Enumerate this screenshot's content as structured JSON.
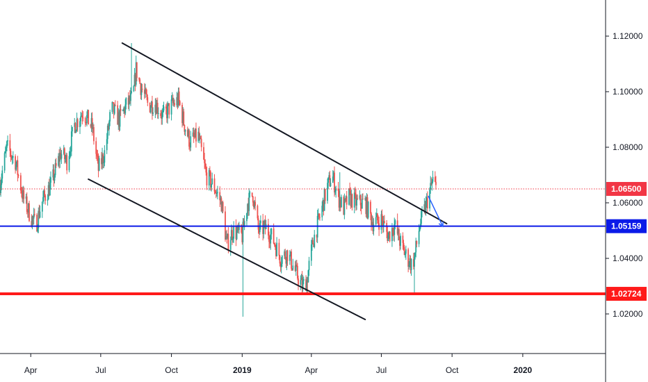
{
  "chart_data": {
    "type": "candlestick",
    "instrument_unit": "price",
    "y_axis": {
      "ticks": [
        "1.12000",
        "1.10000",
        "1.08000",
        "1.06000",
        "1.04000",
        "1.02000"
      ],
      "tick_values": [
        1.12,
        1.1,
        1.08,
        1.06,
        1.04,
        1.02
      ],
      "ylim": [
        1.006,
        1.133
      ]
    },
    "x_axis": {
      "ticks": [
        {
          "label": "Apr",
          "date": "2018-04-01",
          "bold": false
        },
        {
          "label": "Jul",
          "date": "2018-07-01",
          "bold": false
        },
        {
          "label": "Oct",
          "date": "2018-10-01",
          "bold": false
        },
        {
          "label": "2019",
          "date": "2019-01-01",
          "bold": true
        },
        {
          "label": "Apr",
          "date": "2019-04-01",
          "bold": false
        },
        {
          "label": "Jul",
          "date": "2019-07-01",
          "bold": false
        },
        {
          "label": "Oct",
          "date": "2019-10-01",
          "bold": false
        },
        {
          "label": "2020",
          "date": "2020-01-01",
          "bold": true
        }
      ],
      "xlim": [
        "2018-02-20",
        "2020-04-15"
      ]
    },
    "horizontal_levels": [
      {
        "value": 1.065,
        "label": "1.06500",
        "color": "#f23645",
        "style": "dotted",
        "width": 1
      },
      {
        "value": 1.05159,
        "label": "1.05159",
        "color": "#0b1ae8",
        "style": "solid",
        "width": 2
      },
      {
        "value": 1.02724,
        "label": "1.02724",
        "color": "#ff1a1a",
        "style": "solid",
        "width": 4
      }
    ],
    "trend_lines": [
      {
        "from": {
          "date": "2018-07-29",
          "value": 1.1175
        },
        "to": {
          "date": "2019-09-24",
          "value": 1.0525
        },
        "color": "#131722"
      },
      {
        "from": {
          "date": "2018-06-15",
          "value": 1.0685
        },
        "to": {
          "date": "2019-06-10",
          "value": 1.018
        },
        "color": "#131722"
      }
    ],
    "projection_arrow": {
      "from": {
        "date": "2019-08-31",
        "value": 1.0625
      },
      "to": {
        "date": "2019-09-19",
        "value": 1.0515
      },
      "color": "#2962ff"
    },
    "colors": {
      "up": "#26a69a",
      "down": "#ef5350",
      "grid": "none",
      "axis": "#131722"
    },
    "waypoints": [
      [
        "2018-02-20",
        1.067
      ],
      [
        "2018-03-01",
        1.08
      ],
      [
        "2018-03-12",
        1.075
      ],
      [
        "2018-03-22",
        1.062
      ],
      [
        "2018-04-01",
        1.055
      ],
      [
        "2018-04-08",
        1.052
      ],
      [
        "2018-04-15",
        1.06
      ],
      [
        "2018-04-28",
        1.067
      ],
      [
        "2018-05-10",
        1.078
      ],
      [
        "2018-05-18",
        1.075
      ],
      [
        "2018-05-28",
        1.088
      ],
      [
        "2018-06-08",
        1.093
      ],
      [
        "2018-06-20",
        1.087
      ],
      [
        "2018-06-28",
        1.072
      ],
      [
        "2018-07-06",
        1.078
      ],
      [
        "2018-07-15",
        1.094
      ],
      [
        "2018-07-25",
        1.09
      ],
      [
        "2018-08-03",
        1.095
      ],
      [
        "2018-08-12",
        1.098
      ],
      [
        "2018-08-16",
        1.108
      ],
      [
        "2018-08-22",
        1.102
      ],
      [
        "2018-09-01",
        1.095
      ],
      [
        "2018-09-10",
        1.096
      ],
      [
        "2018-09-20",
        1.091
      ],
      [
        "2018-10-01",
        1.095
      ],
      [
        "2018-10-10",
        1.097
      ],
      [
        "2018-10-18",
        1.088
      ],
      [
        "2018-10-25",
        1.082
      ],
      [
        "2018-11-05",
        1.084
      ],
      [
        "2018-11-15",
        1.07
      ],
      [
        "2018-11-25",
        1.066
      ],
      [
        "2018-12-05",
        1.06
      ],
      [
        "2018-12-12",
        1.045
      ],
      [
        "2018-12-20",
        1.05
      ],
      [
        "2019-01-01",
        1.048
      ],
      [
        "2019-01-08",
        1.06
      ],
      [
        "2019-01-15",
        1.063
      ],
      [
        "2019-01-22",
        1.05
      ],
      [
        "2019-02-01",
        1.051
      ],
      [
        "2019-02-10",
        1.047
      ],
      [
        "2019-02-20",
        1.04
      ],
      [
        "2019-03-01",
        1.042
      ],
      [
        "2019-03-10",
        1.036
      ],
      [
        "2019-03-20",
        1.03
      ],
      [
        "2019-03-26",
        1.032
      ],
      [
        "2019-04-03",
        1.046
      ],
      [
        "2019-04-12",
        1.055
      ],
      [
        "2019-04-22",
        1.066
      ],
      [
        "2019-04-28",
        1.07
      ],
      [
        "2019-05-06",
        1.062
      ],
      [
        "2019-05-13",
        1.058
      ],
      [
        "2019-05-20",
        1.062
      ],
      [
        "2019-05-30",
        1.06
      ],
      [
        "2019-06-10",
        1.06
      ],
      [
        "2019-06-20",
        1.053
      ],
      [
        "2019-07-01",
        1.054
      ],
      [
        "2019-07-10",
        1.048
      ],
      [
        "2019-07-18",
        1.052
      ],
      [
        "2019-07-28",
        1.044
      ],
      [
        "2019-08-04",
        1.04
      ],
      [
        "2019-08-09",
        1.038
      ],
      [
        "2019-08-13",
        1.04
      ],
      [
        "2019-08-20",
        1.052
      ],
      [
        "2019-08-27",
        1.058
      ],
      [
        "2019-09-01",
        1.063
      ],
      [
        "2019-09-06",
        1.068
      ],
      [
        "2019-09-10",
        1.065
      ]
    ],
    "spikes": [
      {
        "date": "2018-08-10",
        "high": 1.1175
      },
      {
        "date": "2019-01-02",
        "low": 1.019
      },
      {
        "date": "2019-03-27",
        "low": 1.0275
      },
      {
        "date": "2019-05-08",
        "high": 1.071
      },
      {
        "date": "2019-08-13",
        "low": 1.0275
      }
    ]
  }
}
